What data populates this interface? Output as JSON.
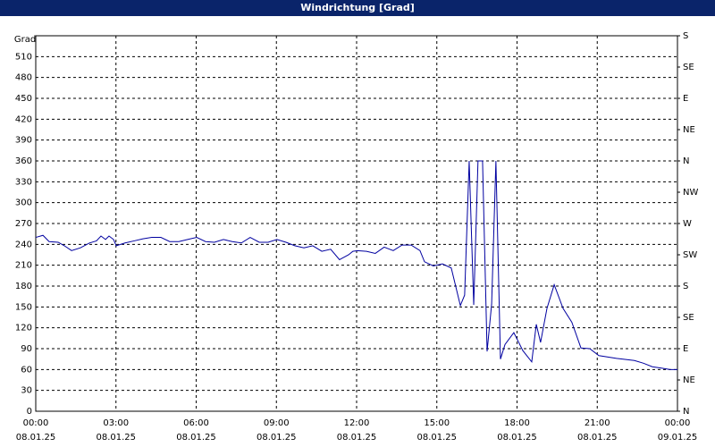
{
  "chart_data": {
    "type": "line",
    "title": "Windrichtung [Grad]",
    "y_label": "Grad",
    "x": [
      0,
      0.27,
      0.5,
      0.84,
      1.07,
      1.34,
      1.67,
      2.01,
      2.27,
      2.44,
      2.61,
      2.74,
      2.91,
      3.01,
      3.34,
      3.68,
      4.01,
      4.34,
      4.68,
      5.01,
      5.35,
      5.68,
      6.02,
      6.35,
      6.68,
      7.02,
      7.35,
      7.69,
      8.02,
      8.36,
      8.69,
      9.02,
      9.36,
      9.69,
      10.03,
      10.36,
      10.7,
      11.03,
      11.36,
      11.7,
      11.86,
      12.03,
      12.37,
      12.7,
      13.03,
      13.37,
      13.7,
      14.04,
      14.37,
      14.54,
      14.87,
      15.21,
      15.54,
      15.88,
      16.04,
      16.21,
      16.38,
      16.54,
      16.71,
      16.88,
      17.05,
      17.21,
      17.38,
      17.55,
      17.88,
      18.22,
      18.55,
      18.72,
      18.88,
      19.12,
      19.39,
      19.72,
      20.05,
      20.39,
      20.72,
      21.06,
      21.72,
      22.39,
      22.73,
      23.06,
      23.4,
      23.73,
      24
    ],
    "series": [
      {
        "name": "Windrichtung",
        "color": "#0000a0",
        "values": [
          250,
          253,
          244,
          243,
          238,
          231,
          235,
          242,
          245,
          252,
          247,
          252,
          247,
          238,
          242,
          245,
          248,
          250,
          250,
          244,
          244,
          247,
          250,
          244,
          243,
          247,
          244,
          242,
          250,
          243,
          243,
          247,
          243,
          238,
          235,
          238,
          230,
          233,
          218,
          225,
          230,
          231,
          230,
          227,
          236,
          231,
          239,
          239,
          231,
          215,
          209,
          212,
          206,
          152,
          167,
          360,
          153,
          360,
          360,
          86,
          154,
          360,
          75,
          96,
          113,
          87,
          71,
          125,
          99,
          148,
          182,
          148,
          128,
          91,
          90,
          80,
          76,
          73,
          69,
          64,
          62,
          60,
          60
        ]
      }
    ],
    "xlim": [
      0,
      24
    ],
    "xticks": [
      {
        "value": 0,
        "label": "00:00",
        "date": "08.01.25"
      },
      {
        "value": 3,
        "label": "03:00",
        "date": "08.01.25"
      },
      {
        "value": 6,
        "label": "06:00",
        "date": "08.01.25"
      },
      {
        "value": 9,
        "label": "09:00",
        "date": "08.01.25"
      },
      {
        "value": 12,
        "label": "12:00",
        "date": "08.01.25"
      },
      {
        "value": 15,
        "label": "15:00",
        "date": "08.01.25"
      },
      {
        "value": 18,
        "label": "18:00",
        "date": "08.01.25"
      },
      {
        "value": 21,
        "label": "21:00",
        "date": "08.01.25"
      },
      {
        "value": 24,
        "label": "00:00",
        "date": "09.01.25"
      }
    ],
    "ylim": [
      0,
      540
    ],
    "yticks": [
      0,
      30,
      60,
      90,
      120,
      150,
      180,
      210,
      240,
      270,
      300,
      330,
      360,
      390,
      420,
      450,
      480,
      510
    ],
    "y2lim": [
      0,
      540
    ],
    "y2ticks": [
      {
        "value": 0,
        "label": "N"
      },
      {
        "value": 45,
        "label": "NE"
      },
      {
        "value": 90,
        "label": "E"
      },
      {
        "value": 135,
        "label": "SE"
      },
      {
        "value": 180,
        "label": "S"
      },
      {
        "value": 225,
        "label": "SW"
      },
      {
        "value": 270,
        "label": "W"
      },
      {
        "value": 315,
        "label": "NW"
      },
      {
        "value": 360,
        "label": "N"
      },
      {
        "value": 405,
        "label": "NE"
      },
      {
        "value": 450,
        "label": "E"
      },
      {
        "value": 495,
        "label": "SE"
      },
      {
        "value": 540,
        "label": "S"
      }
    ],
    "grid": true
  }
}
